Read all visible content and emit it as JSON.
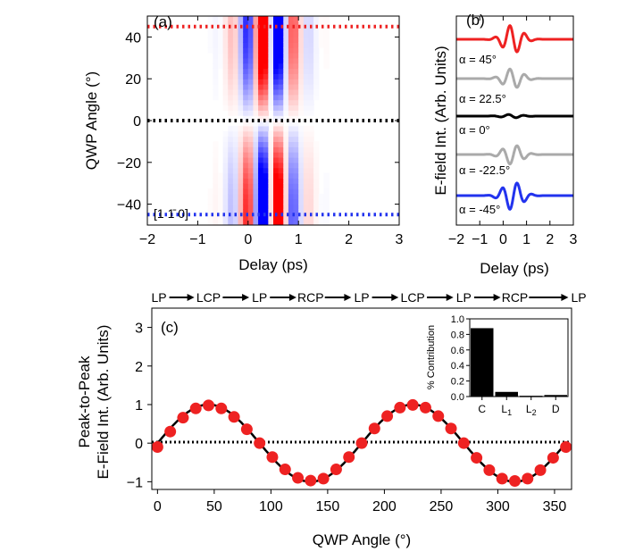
{
  "chart_data": [
    {
      "panel": "(a)",
      "type": "heatmap",
      "xlabel": "Delay (ps)",
      "ylabel": "QWP Angle (°)",
      "xlim": [
        -2,
        3
      ],
      "ylim": [
        -50,
        50
      ],
      "xticks": [
        -2,
        -1,
        0,
        1,
        2,
        3
      ],
      "yticks": [
        -40,
        -20,
        0,
        20,
        40
      ],
      "annotation": "[1 1̄ 0]",
      "guide_lines": [
        {
          "y": 45,
          "color": "#ee2222"
        },
        {
          "y": 0,
          "color": "#000000"
        },
        {
          "y": -45,
          "color": "#2233ee"
        }
      ],
      "colors": {
        "positive": "#ff0000",
        "negative": "#0000ff"
      }
    },
    {
      "panel": "(b)",
      "type": "line",
      "xlabel": "Delay (ps)",
      "ylabel": "E-field Int. (Arb. Units)",
      "xlim": [
        -2,
        3
      ],
      "xticks": [
        -2,
        -1,
        0,
        1,
        2,
        3
      ],
      "series": [
        {
          "label": "α = 45°",
          "color": "#ee2222",
          "amp": 1.0
        },
        {
          "label": "α = 22.5°",
          "color": "#aaaaaa",
          "amp": 0.7
        },
        {
          "label": "α = 0°",
          "color": "#000000",
          "amp": 0.06
        },
        {
          "label": "α = -22.5°",
          "color": "#aaaaaa",
          "amp": -0.7
        },
        {
          "label": "α = -45°",
          "color": "#2233ee",
          "amp": -1.0
        }
      ]
    },
    {
      "panel": "(c)",
      "type": "scatter",
      "xlabel": "QWP Angle (°)",
      "ylabel_line1": "Peak-to-Peak",
      "ylabel_line2": "E-Field Int. (Arb. Units)",
      "xlim": [
        -5,
        365
      ],
      "ylim": [
        -1.2,
        3.5
      ],
      "xticks": [
        0,
        50,
        100,
        150,
        200,
        250,
        300,
        350
      ],
      "yticks": [
        -1,
        0,
        1,
        2,
        3
      ],
      "x": [
        0,
        11.25,
        22.5,
        33.75,
        45,
        56.25,
        67.5,
        78.75,
        90,
        101.25,
        112.5,
        123.75,
        135,
        146.25,
        157.5,
        168.75,
        180,
        191.25,
        202.5,
        213.75,
        225,
        236.25,
        247.5,
        258.75,
        270,
        281.25,
        292.5,
        303.75,
        315,
        326.25,
        337.5,
        348.75,
        360
      ],
      "y": [
        -0.1,
        0.3,
        0.66,
        0.9,
        0.98,
        0.9,
        0.68,
        0.36,
        0.0,
        -0.36,
        -0.68,
        -0.9,
        -0.97,
        -0.92,
        -0.68,
        -0.36,
        0.0,
        0.38,
        0.7,
        0.92,
        0.99,
        0.92,
        0.7,
        0.38,
        0.0,
        -0.38,
        -0.7,
        -0.92,
        -0.98,
        -0.92,
        -0.7,
        -0.38,
        -0.1
      ],
      "fit": "sin(2θ)",
      "polarization_sequence": [
        "LP",
        "LCP",
        "LP",
        "RCP",
        "LP",
        "LCP",
        "LP",
        "RCP",
        "LP"
      ],
      "colors": {
        "points": "#ee2222",
        "fit": "#000000"
      },
      "inset": {
        "type": "bar",
        "ylabel": "% Contribution",
        "categories": [
          "C",
          "L1",
          "L2",
          "D"
        ],
        "values": [
          0.88,
          0.06,
          0.01,
          0.02
        ],
        "ylim": [
          0,
          1.0
        ],
        "yticks": [
          "0.0",
          "0.2",
          "0.4",
          "0.6",
          "0.8",
          "1.0"
        ],
        "placement": "top-right"
      }
    }
  ]
}
